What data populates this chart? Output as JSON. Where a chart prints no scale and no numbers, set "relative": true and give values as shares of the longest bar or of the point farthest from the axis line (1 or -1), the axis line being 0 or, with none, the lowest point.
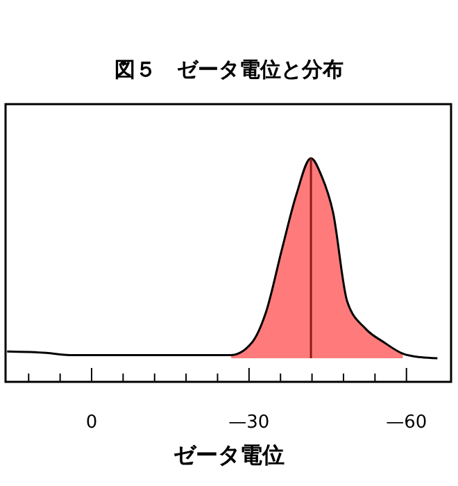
{
  "chart_data": {
    "type": "line",
    "title": "図５　ゼータ電位と分布",
    "xlabel": "ゼータ電位",
    "relative": true,
    "xlim": [
      16.4,
      -68.5
    ],
    "xticks": [
      {
        "value": 12,
        "label": null
      },
      {
        "value": 6,
        "label": null
      },
      0,
      {
        "value": -6,
        "label": null
      },
      {
        "value": -12,
        "label": null
      },
      {
        "value": -18,
        "label": null
      },
      {
        "value": -24,
        "label": null
      },
      {
        "value": -30,
        "label": "—30"
      },
      {
        "value": -36,
        "label": null
      },
      {
        "value": -42,
        "label": null
      },
      {
        "value": -48,
        "label": null
      },
      {
        "value": -54,
        "label": null
      },
      {
        "value": -60,
        "label": "—60"
      }
    ],
    "series": [
      {
        "type": "area",
        "color": "#ff7b7b",
        "x": [
          -26.6,
          -30.6,
          -33.2,
          -36.3,
          -39.0,
          -41.8,
          -43.8,
          -46.0,
          -48.7,
          -52.2,
          -55.7,
          -59.3
        ],
        "values": [
          0.016,
          0.08,
          0.228,
          0.548,
          0.817,
          1,
          0.913,
          0.731,
          0.285,
          0.148,
          0.08,
          0.023
        ]
      },
      {
        "color": "#000000",
        "x": [
          16.1,
          8.6,
          4.2,
          -26.6,
          -30.6,
          -33.2,
          -36.3,
          -39.0,
          -41.8,
          -43.8,
          -46.0,
          -48.7,
          -52.2,
          -55.7,
          -59.3,
          -62.8,
          -65.9
        ],
        "values": [
          0.034,
          0.027,
          0.016,
          0.016,
          0.08,
          0.228,
          0.548,
          0.817,
          1,
          0.913,
          0.731,
          0.285,
          0.148,
          0.08,
          0.023,
          0.005,
          0
        ]
      }
    ],
    "ref_lines": [
      {
        "axis": "x",
        "value": -41.8,
        "color": "#8b1a1a"
      }
    ],
    "grid": false
  }
}
